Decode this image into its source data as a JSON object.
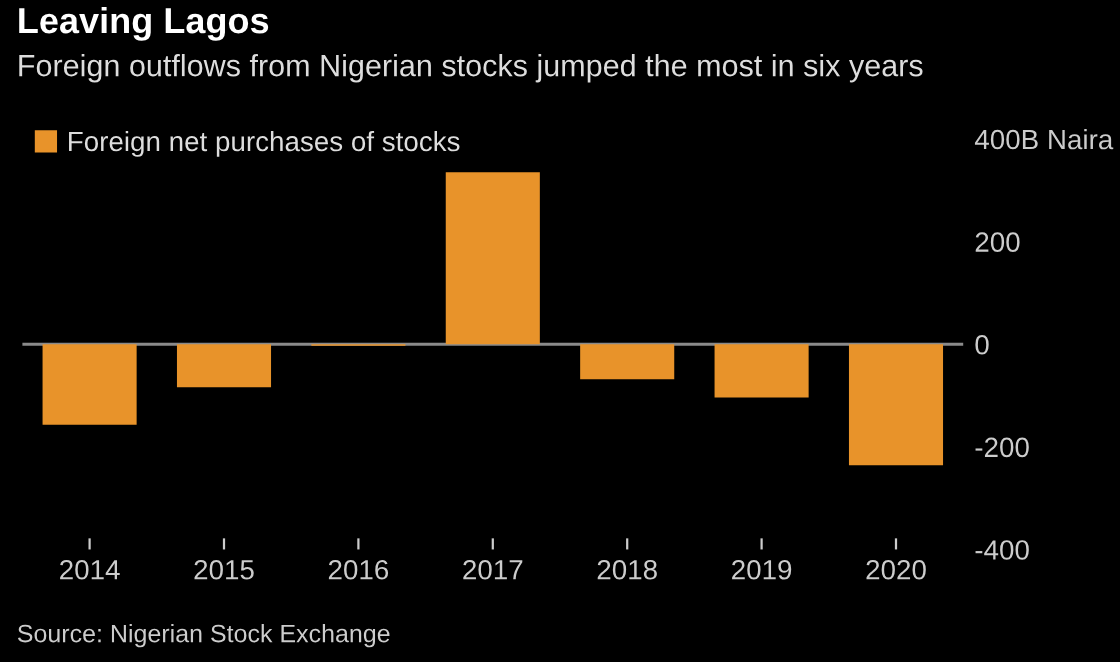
{
  "chart_data": {
    "type": "bar",
    "title": "Leaving Lagos",
    "subtitle": "Foreign outflows from Nigerian stocks jumped the most in six years",
    "categories": [
      "2014",
      "2015",
      "2016",
      "2017",
      "2018",
      "2019",
      "2020"
    ],
    "series": [
      {
        "name": "Foreign net purchases of stocks",
        "color": "#e8932a",
        "values": [
          -157,
          -84,
          -3,
          335,
          -68,
          -104,
          -236
        ]
      }
    ],
    "ylim": [
      -400,
      400
    ],
    "yticks": [
      {
        "value": 400,
        "label": "400B Naira"
      },
      200,
      0,
      -200,
      -400
    ],
    "ref_lines": [
      {
        "axis": "y",
        "value": 0,
        "color": "#8a8a8a"
      }
    ],
    "legend": "top left",
    "grid": false,
    "annotations": [
      "Source: Nigerian Stock Exchange"
    ]
  }
}
